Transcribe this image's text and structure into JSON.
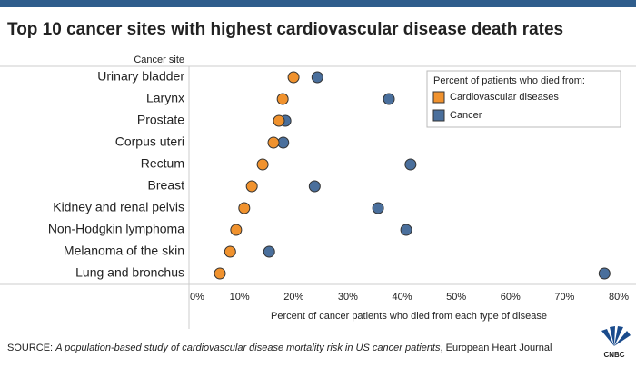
{
  "chart_data": {
    "type": "dot",
    "title": "Top 10 cancer sites with highest cardiovascular disease death rates",
    "y_label": "Cancer site",
    "x_label": "Percent of cancer patients who died from each type of disease",
    "categories": [
      "Urinary bladder",
      "Larynx",
      "Prostate",
      "Corpus uteri",
      "Rectum",
      "Breast",
      "Kidney and renal pelvis",
      "Non-Hodgkin lymphoma",
      "Melanoma of the skin",
      "Lung and bronchus"
    ],
    "series": [
      {
        "name": "Cancer",
        "color": "#4a6f9c",
        "values": [
          23.7,
          36.9,
          17.8,
          17.4,
          40.9,
          23.2,
          34.9,
          40.1,
          14.8,
          76.7
        ]
      },
      {
        "name": "Cardiovascular diseases",
        "color": "#f0922e",
        "values": [
          19.3,
          17.3,
          16.6,
          15.6,
          13.6,
          11.6,
          10.2,
          8.7,
          7.6,
          5.7
        ]
      }
    ],
    "legend_title": "Percent of patients who died from:",
    "legend": "top-right",
    "legend_order": [
      "Cardiovascular diseases",
      "Cancer"
    ],
    "xlim": [
      0,
      80
    ],
    "xticks": [
      {
        "value": 0,
        "label": "0%"
      },
      {
        "value": 10,
        "label": "10%"
      },
      {
        "value": 20,
        "label": "20%"
      },
      {
        "value": 30,
        "label": "30%"
      },
      {
        "value": 40,
        "label": "40%"
      },
      {
        "value": 50,
        "label": "50%"
      },
      {
        "value": 60,
        "label": "60%"
      },
      {
        "value": 70,
        "label": "70%"
      },
      {
        "value": 80,
        "label": "80%"
      }
    ],
    "grid": false,
    "source": {
      "label": "SOURCE:",
      "text": "A population-based study of cardiovascular disease mortality risk in US cancer patients",
      "publisher": ", European Heart Journal"
    },
    "logo": "CNBC"
  }
}
